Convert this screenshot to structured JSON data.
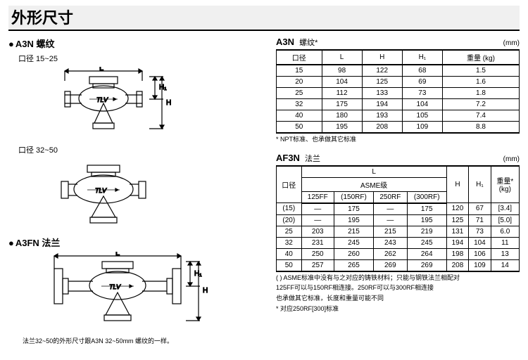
{
  "page_title": "外形尺寸",
  "left": {
    "a3n_label": "A3N 螺纹",
    "bore_15_25": "口径 15~25",
    "bore_32_50": "口径 32~50",
    "a3fn_label": "A3FN 法兰",
    "footnote": "法兰32~50的外形尺寸跟A3N 32~50mm 螺纹的一样。"
  },
  "table1": {
    "title": "A3N",
    "subtitle": "螺纹*",
    "unit": "(mm)",
    "cols": [
      "口径",
      "L",
      "H",
      "H₁",
      "重量 (kg)"
    ],
    "rows": [
      [
        "15",
        "98",
        "122",
        "68",
        "1.5"
      ],
      [
        "20",
        "104",
        "125",
        "69",
        "1.6"
      ],
      [
        "25",
        "112",
        "133",
        "73",
        "1.8"
      ],
      [
        "32",
        "175",
        "194",
        "104",
        "7.2"
      ],
      [
        "40",
        "180",
        "193",
        "105",
        "7.4"
      ],
      [
        "50",
        "195",
        "208",
        "109",
        "8.8"
      ]
    ],
    "note": "* NPT标准、也承做其它标准"
  },
  "table2": {
    "title": "AF3N",
    "subtitle": "法兰",
    "unit": "(mm)",
    "header": {
      "bore": "口径",
      "L": "L",
      "asme": "ASME级",
      "sub": [
        "125FF",
        "(150RF)",
        "250RF",
        "(300RF)"
      ],
      "H": "H",
      "H1": "H₁",
      "weight": "重量*\n(kg)"
    },
    "rows": [
      [
        "(15)",
        "—",
        "175",
        "—",
        "175",
        "120",
        "67",
        "[3.4]"
      ],
      [
        "(20)",
        "—",
        "195",
        "—",
        "195",
        "125",
        "71",
        "[5.0]"
      ],
      [
        "25",
        "203",
        "215",
        "215",
        "219",
        "131",
        "73",
        "6.0"
      ],
      [
        "32",
        "231",
        "245",
        "243",
        "245",
        "194",
        "104",
        "11"
      ],
      [
        "40",
        "250",
        "260",
        "262",
        "264",
        "198",
        "106",
        "13"
      ],
      [
        "50",
        "257",
        "265",
        "269",
        "269",
        "208",
        "109",
        "14"
      ]
    ],
    "note1": "( ) ASME标准中没有与之对应的铸铁材料；只能与钢铁法兰相配对",
    "note2": "125FF可以与150RF相连接。250RF可以与300RF相连接",
    "note3": "也承做其它标准，长度和重量可能不同",
    "note4": "* 对应250RF[300]标准"
  },
  "diagram_labels": {
    "L": "L",
    "H": "H",
    "H1": "H₁",
    "tlv": "TLV"
  }
}
